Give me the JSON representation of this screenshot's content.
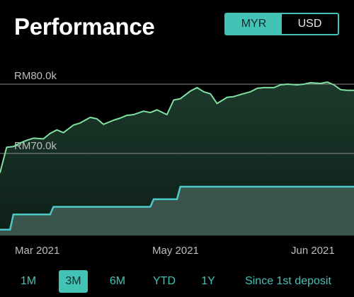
{
  "header": {
    "title": "Performance"
  },
  "currency": {
    "options": [
      "MYR",
      "USD"
    ],
    "selected": "MYR"
  },
  "colors": {
    "accent": "#43c2b6",
    "portfolio_line": "#7fe0a0",
    "deposit_line": "#4cc9c9",
    "background": "#000000"
  },
  "chart_data": {
    "type": "line",
    "y_ticks": [
      {
        "value": 80000,
        "label": "RM80.0k"
      },
      {
        "value": 70000,
        "label": "RM70.0k"
      }
    ],
    "x_ticks": [
      "Mar 2021",
      "May 2021",
      "Jun 2021"
    ],
    "x_range": [
      "2021-02-24",
      "2021-06-10"
    ],
    "ylim": [
      58000,
      83000
    ],
    "series": [
      {
        "key": "portfolio",
        "x": [
          "2021-02-24",
          "2021-02-26",
          "2021-02-28",
          "2021-03-02",
          "2021-03-04",
          "2021-03-06",
          "2021-03-09",
          "2021-03-11",
          "2021-03-13",
          "2021-03-15",
          "2021-03-18",
          "2021-03-20",
          "2021-03-23",
          "2021-03-25",
          "2021-03-27",
          "2021-03-30",
          "2021-04-01",
          "2021-04-03",
          "2021-04-05",
          "2021-04-08",
          "2021-04-10",
          "2021-04-12",
          "2021-04-15",
          "2021-04-17",
          "2021-04-19",
          "2021-04-22",
          "2021-04-24",
          "2021-04-26",
          "2021-04-28",
          "2021-04-30",
          "2021-05-03",
          "2021-05-05",
          "2021-05-07",
          "2021-05-10",
          "2021-05-12",
          "2021-05-14",
          "2021-05-17",
          "2021-05-19",
          "2021-05-21",
          "2021-05-24",
          "2021-05-26",
          "2021-05-28",
          "2021-05-31",
          "2021-06-02",
          "2021-06-04",
          "2021-06-06",
          "2021-06-08",
          "2021-06-10"
        ],
        "values": [
          67200,
          70900,
          71000,
          71500,
          71900,
          72200,
          72100,
          72900,
          73400,
          73000,
          74100,
          74400,
          75200,
          75000,
          74200,
          74800,
          75100,
          75500,
          75600,
          76100,
          75900,
          76300,
          75600,
          77700,
          77900,
          79000,
          79500,
          78900,
          78600,
          77200,
          78100,
          78200,
          78500,
          78900,
          79400,
          79500,
          79500,
          79900,
          80000,
          79900,
          80000,
          80200,
          80100,
          80300,
          79900,
          79200,
          79100,
          79100
        ]
      },
      {
        "key": "deposit",
        "x": [
          "2021-02-24",
          "2021-02-27",
          "2021-02-28",
          "2021-03-11",
          "2021-03-12",
          "2021-04-10",
          "2021-04-11",
          "2021-04-18",
          "2021-04-19",
          "2021-06-10"
        ],
        "values": [
          59000,
          59000,
          61200,
          61200,
          62300,
          62300,
          63400,
          63400,
          65200,
          65200
        ]
      }
    ]
  },
  "ranges": {
    "options": [
      "1M",
      "3M",
      "6M",
      "YTD",
      "1Y",
      "Since 1st deposit"
    ],
    "selected": "3M"
  }
}
